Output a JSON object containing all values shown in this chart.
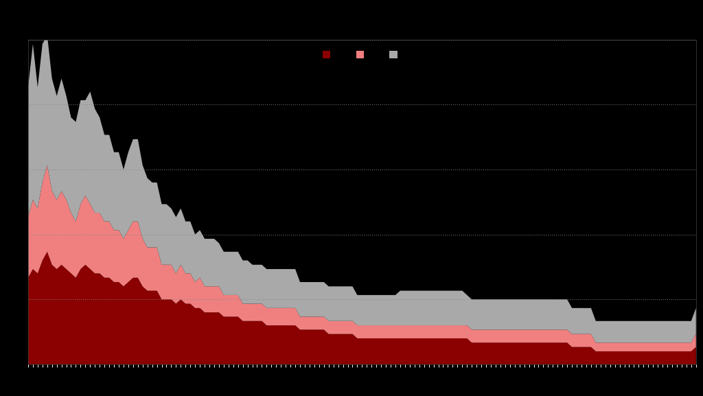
{
  "background_color": "#000000",
  "plot_bg_color": "#000000",
  "legend_colors": [
    "#8B0000",
    "#F08080",
    "#A9A9A9"
  ],
  "grid_color": "#888888",
  "grid_linestyle": ":",
  "grid_alpha": 0.8,
  "ylim": [
    0,
    75
  ],
  "s1": [
    20,
    22,
    21,
    24,
    26,
    23,
    22,
    23,
    22,
    21,
    20,
    22,
    23,
    22,
    21,
    21,
    20,
    20,
    19,
    19,
    18,
    19,
    20,
    20,
    18,
    17,
    17,
    17,
    15,
    15,
    15,
    14,
    15,
    14,
    14,
    13,
    13,
    12,
    12,
    12,
    12,
    11,
    11,
    11,
    11,
    10,
    10,
    10,
    10,
    10,
    9,
    9,
    9,
    9,
    9,
    9,
    9,
    8,
    8,
    8,
    8,
    8,
    8,
    7,
    7,
    7,
    7,
    7,
    7,
    6,
    6,
    6,
    6,
    6,
    6,
    6,
    6,
    6,
    6,
    6,
    6,
    6,
    6,
    6,
    6,
    6,
    6,
    6,
    6,
    6,
    6,
    6,
    6,
    5,
    5,
    5,
    5,
    5,
    5,
    5,
    5,
    5,
    5,
    5,
    5,
    5,
    5,
    5,
    5,
    5,
    5,
    5,
    5,
    5,
    4,
    4,
    4,
    4,
    4,
    3,
    3,
    3,
    3,
    3,
    3,
    3,
    3,
    3,
    3,
    3,
    3,
    3,
    3,
    3,
    3,
    3,
    3,
    3,
    3,
    3,
    4
  ],
  "s2": [
    14,
    16,
    15,
    18,
    20,
    17,
    16,
    17,
    16,
    14,
    13,
    15,
    16,
    15,
    14,
    14,
    13,
    13,
    12,
    12,
    11,
    12,
    13,
    13,
    11,
    10,
    10,
    10,
    8,
    8,
    8,
    7,
    8,
    7,
    7,
    6,
    7,
    6,
    6,
    6,
    6,
    5,
    5,
    5,
    5,
    4,
    4,
    4,
    4,
    4,
    4,
    4,
    4,
    4,
    4,
    4,
    4,
    3,
    3,
    3,
    3,
    3,
    3,
    3,
    3,
    3,
    3,
    3,
    3,
    3,
    3,
    3,
    3,
    3,
    3,
    3,
    3,
    3,
    3,
    3,
    3,
    3,
    3,
    3,
    3,
    3,
    3,
    3,
    3,
    3,
    3,
    3,
    3,
    3,
    3,
    3,
    3,
    3,
    3,
    3,
    3,
    3,
    3,
    3,
    3,
    3,
    3,
    3,
    3,
    3,
    3,
    3,
    3,
    3,
    3,
    3,
    3,
    3,
    3,
    2,
    2,
    2,
    2,
    2,
    2,
    2,
    2,
    2,
    2,
    2,
    2,
    2,
    2,
    2,
    2,
    2,
    2,
    2,
    2,
    2,
    3
  ],
  "s3": [
    30,
    36,
    28,
    32,
    30,
    26,
    24,
    26,
    24,
    22,
    23,
    24,
    22,
    26,
    24,
    22,
    20,
    20,
    18,
    18,
    16,
    18,
    19,
    19,
    17,
    16,
    15,
    15,
    14,
    14,
    13,
    13,
    13,
    12,
    12,
    11,
    11,
    11,
    11,
    11,
    10,
    10,
    10,
    10,
    10,
    10,
    10,
    9,
    9,
    9,
    9,
    9,
    9,
    9,
    9,
    9,
    9,
    8,
    8,
    8,
    8,
    8,
    8,
    8,
    8,
    8,
    8,
    8,
    8,
    7,
    7,
    7,
    7,
    7,
    7,
    7,
    7,
    7,
    8,
    8,
    8,
    8,
    8,
    8,
    8,
    8,
    8,
    8,
    8,
    8,
    8,
    8,
    7,
    7,
    7,
    7,
    7,
    7,
    7,
    7,
    7,
    7,
    7,
    7,
    7,
    7,
    7,
    7,
    7,
    7,
    7,
    7,
    7,
    7,
    6,
    6,
    6,
    6,
    6,
    5,
    5,
    5,
    5,
    5,
    5,
    5,
    5,
    5,
    5,
    5,
    5,
    5,
    5,
    5,
    5,
    5,
    5,
    5,
    5,
    5,
    6
  ]
}
